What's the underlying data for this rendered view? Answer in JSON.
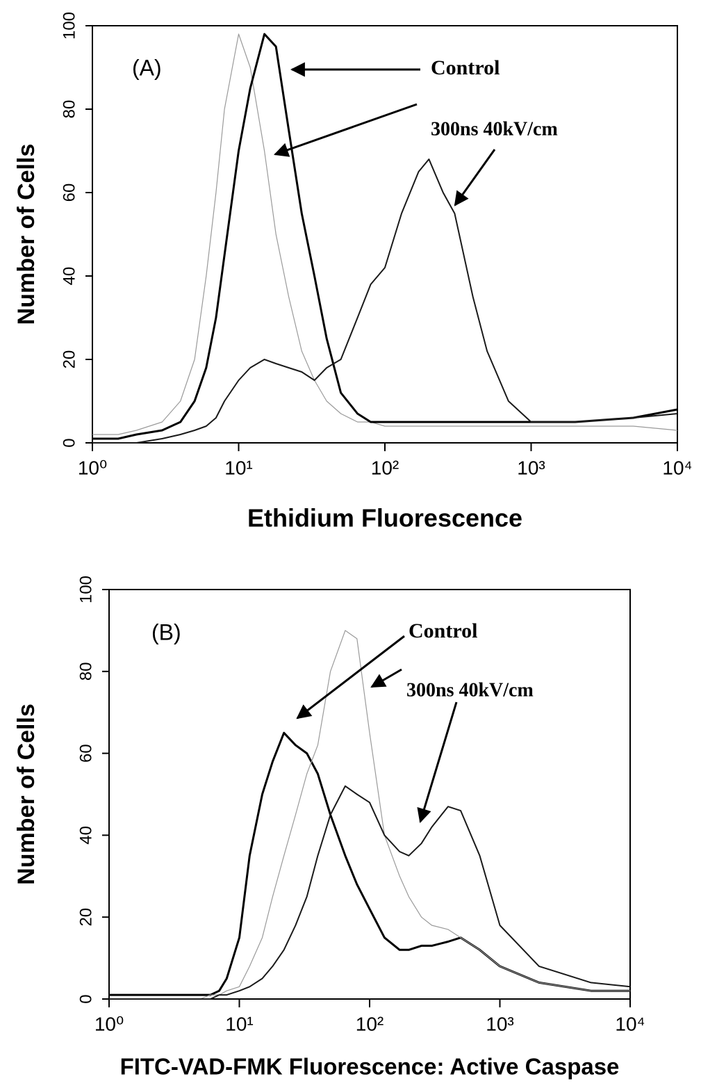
{
  "chart_data": [
    {
      "type": "line",
      "xscale": "log",
      "annotations": [
        "(A)",
        "Control",
        "300ns  40kV/cm"
      ],
      "xlabel": "Ethidium Fluorescence",
      "ylabel": "Number of Cells",
      "x": [
        1,
        1.5,
        2,
        3,
        4,
        5,
        6,
        7,
        8,
        10,
        12,
        15,
        18,
        22,
        27,
        33,
        40,
        50,
        65,
        80,
        100,
        130,
        170,
        200,
        250,
        300,
        400,
        500,
        700,
        1000,
        2000,
        5000,
        10000
      ],
      "series": [
        {
          "color": "#9a9a9a",
          "values": [
            2,
            2,
            3,
            5,
            10,
            20,
            40,
            60,
            80,
            98,
            90,
            70,
            50,
            35,
            22,
            15,
            10,
            7,
            5,
            5,
            4,
            4,
            4,
            4,
            4,
            4,
            4,
            4,
            4,
            4,
            4,
            4,
            3
          ]
        },
        {
          "color": "#000000",
          "values": [
            1,
            1,
            2,
            3,
            5,
            10,
            18,
            30,
            45,
            70,
            85,
            98,
            95,
            75,
            55,
            40,
            25,
            12,
            7,
            5,
            5,
            5,
            5,
            5,
            5,
            5,
            5,
            5,
            5,
            5,
            5,
            6,
            8
          ]
        },
        {
          "color": "#1a1a1a",
          "values": [
            0,
            0,
            0,
            1,
            2,
            3,
            4,
            6,
            10,
            15,
            18,
            20,
            19,
            18,
            17,
            15,
            18,
            20,
            30,
            38,
            42,
            55,
            65,
            68,
            60,
            55,
            35,
            22,
            10,
            5,
            5,
            6,
            7
          ]
        }
      ],
      "xlim": [
        1,
        10000
      ],
      "xticks": [
        {
          "value": 1,
          "label": "10⁰"
        },
        {
          "value": 10,
          "label": "10¹"
        },
        {
          "value": 100,
          "label": "10²"
        },
        {
          "value": 1000,
          "label": "10³"
        },
        {
          "value": 10000,
          "label": "10⁴"
        }
      ],
      "ylim": [
        0,
        100
      ],
      "yticks": [
        0,
        20,
        40,
        60,
        80,
        100
      ],
      "grid": false
    },
    {
      "type": "line",
      "xscale": "log",
      "annotations": [
        "(B)",
        "Control",
        "300ns  40kV/cm"
      ],
      "xlabel": "FITC-VAD-FMK Fluorescence: Active Caspase",
      "ylabel": "Number of Cells",
      "x": [
        1,
        1.5,
        2,
        3,
        4,
        5,
        6,
        7,
        8,
        10,
        12,
        15,
        18,
        22,
        27,
        33,
        40,
        50,
        65,
        80,
        100,
        130,
        170,
        200,
        250,
        300,
        400,
        500,
        700,
        1000,
        2000,
        5000,
        10000
      ],
      "series": [
        {
          "color": "#000000",
          "values": [
            1,
            1,
            1,
            1,
            1,
            1,
            1,
            2,
            5,
            15,
            35,
            50,
            58,
            65,
            62,
            60,
            55,
            45,
            35,
            28,
            22,
            15,
            12,
            12,
            13,
            13,
            14,
            15,
            12,
            8,
            4,
            2,
            2
          ]
        },
        {
          "color": "#9a9a9a",
          "values": [
            0,
            0,
            0,
            0,
            0,
            0,
            1,
            1,
            2,
            3,
            8,
            15,
            25,
            35,
            45,
            55,
            62,
            80,
            90,
            88,
            65,
            40,
            30,
            25,
            20,
            18,
            17,
            15,
            12,
            8,
            4,
            2,
            2
          ]
        },
        {
          "color": "#1a1a1a",
          "values": [
            0,
            0,
            0,
            0,
            0,
            0,
            0,
            1,
            1,
            2,
            3,
            5,
            8,
            12,
            18,
            25,
            35,
            45,
            52,
            50,
            48,
            40,
            36,
            35,
            38,
            42,
            47,
            46,
            35,
            18,
            8,
            4,
            3
          ]
        }
      ],
      "xlim": [
        1,
        10000
      ],
      "xticks": [
        {
          "value": 1,
          "label": "10⁰"
        },
        {
          "value": 10,
          "label": "10¹"
        },
        {
          "value": 100,
          "label": "10²"
        },
        {
          "value": 1000,
          "label": "10³"
        },
        {
          "value": 10000,
          "label": "10⁴"
        }
      ],
      "ylim": [
        0,
        100
      ],
      "yticks": [
        0,
        20,
        40,
        60,
        80,
        100
      ],
      "grid": false
    }
  ]
}
